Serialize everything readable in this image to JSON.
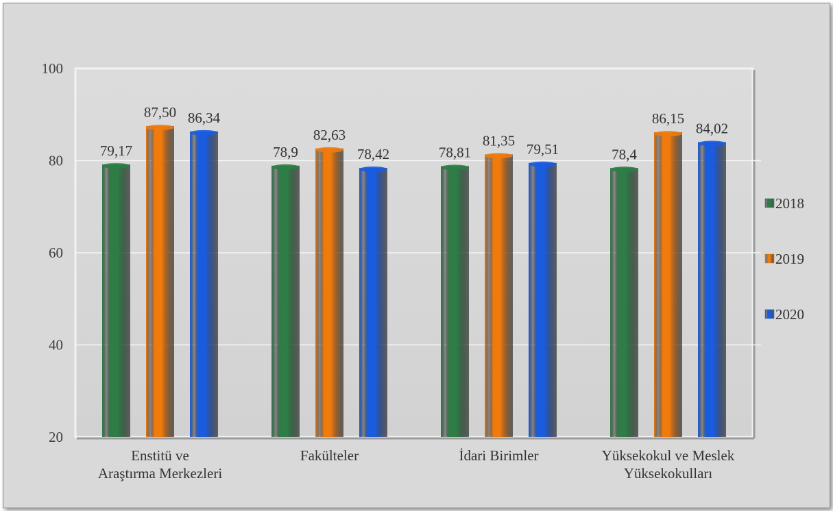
{
  "chart_data": {
    "type": "bar",
    "categories": [
      [
        "Enstitü ve",
        "Araştırma Merkezleri"
      ],
      [
        "Fakülteler"
      ],
      [
        "İdari Birimler"
      ],
      [
        "Yüksekokul ve Meslek",
        "Yüksekokulları"
      ]
    ],
    "series": [
      {
        "name": "2018",
        "values": [
          79.17,
          78.9,
          78.81,
          78.4
        ],
        "labels": [
          "79,17",
          "78,9",
          "78,81",
          "78,4"
        ],
        "color": "#2e7d46"
      },
      {
        "name": "2019",
        "values": [
          87.5,
          82.63,
          81.35,
          86.15
        ],
        "labels": [
          "87,50",
          "82,63",
          "81,35",
          "86,15"
        ],
        "color": "#f07a0c"
      },
      {
        "name": "2020",
        "values": [
          86.34,
          78.42,
          79.51,
          84.02
        ],
        "labels": [
          "86,34",
          "78,42",
          "79,51",
          "84,02"
        ],
        "color": "#1a5ce0"
      }
    ],
    "ylim": [
      20,
      100
    ],
    "yticks": [
      20,
      40,
      60,
      80,
      100
    ],
    "grid": true,
    "legend_position": "right",
    "title": "",
    "xlabel": "",
    "ylabel": ""
  }
}
